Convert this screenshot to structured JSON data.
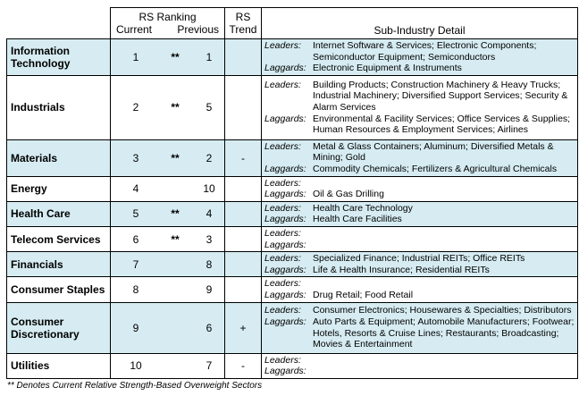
{
  "header": {
    "rs_ranking": "RS Ranking",
    "current": "Current",
    "previous": "Previous",
    "rs": "RS",
    "trend": "Trend",
    "sub_industry": "Sub-Industry Detail"
  },
  "rows": [
    {
      "sector": "Information Technology",
      "current": "1",
      "star": "**",
      "previous": "1",
      "trend": "",
      "leaders": "Internet Software & Services; Electronic Components; Semiconductor Equipment; Semiconductors",
      "laggards": "Electronic Equipment & Instruments"
    },
    {
      "sector": "Industrials",
      "current": "2",
      "star": "**",
      "previous": "5",
      "trend": "",
      "leaders": "Building Products; Construction Machinery & Heavy Trucks; Industrial Machinery; Diversified Support Services; Security & Alarm Services",
      "laggards": "Environmental & Facility Services; Office Services & Supplies; Human Resources & Employment Services; Airlines"
    },
    {
      "sector": "Materials",
      "current": "3",
      "star": "**",
      "previous": "2",
      "trend": "-",
      "leaders": "Metal & Glass Containers; Aluminum; Diversified Metals & Mining; Gold",
      "laggards": "Commodity Chemicals; Fertilizers & Agricultural Chemicals"
    },
    {
      "sector": "Energy",
      "current": "4",
      "star": "",
      "previous": "10",
      "trend": "",
      "leaders": "",
      "laggards": "Oil & Gas Drilling"
    },
    {
      "sector": "Health Care",
      "current": "5",
      "star": "**",
      "previous": "4",
      "trend": "",
      "leaders": "Health Care Technology",
      "laggards": "Health Care Facilities"
    },
    {
      "sector": "Telecom Services",
      "current": "6",
      "star": "**",
      "previous": "3",
      "trend": "",
      "leaders": "",
      "laggards": ""
    },
    {
      "sector": "Financials",
      "current": "7",
      "star": "",
      "previous": "8",
      "trend": "",
      "leaders": "Specialized Finance; Industrial REITs; Office REITs",
      "laggards": "Life & Health Insurance; Residential REITs"
    },
    {
      "sector": "Consumer Staples",
      "current": "8",
      "star": "",
      "previous": "9",
      "trend": "",
      "leaders": "",
      "laggards": "Drug Retail; Food Retail"
    },
    {
      "sector": "Consumer Discretionary",
      "current": "9",
      "star": "",
      "previous": "6",
      "trend": "+",
      "leaders": "Consumer Electronics; Housewares & Specialties; Distributors",
      "laggards": "Auto Parts & Equipment; Automobile Manufacturers; Footwear; Hotels, Resorts & Cruise Lines; Restaurants; Broadcasting; Movies & Entertainment"
    },
    {
      "sector": "Utilities",
      "current": "10",
      "star": "",
      "previous": "7",
      "trend": "-",
      "leaders": "",
      "laggards": ""
    }
  ],
  "labels": {
    "leaders": "Leaders:",
    "laggards": "Laggards:"
  },
  "footnote": "** Denotes Current Relative Strength-Based Overweight Sectors"
}
